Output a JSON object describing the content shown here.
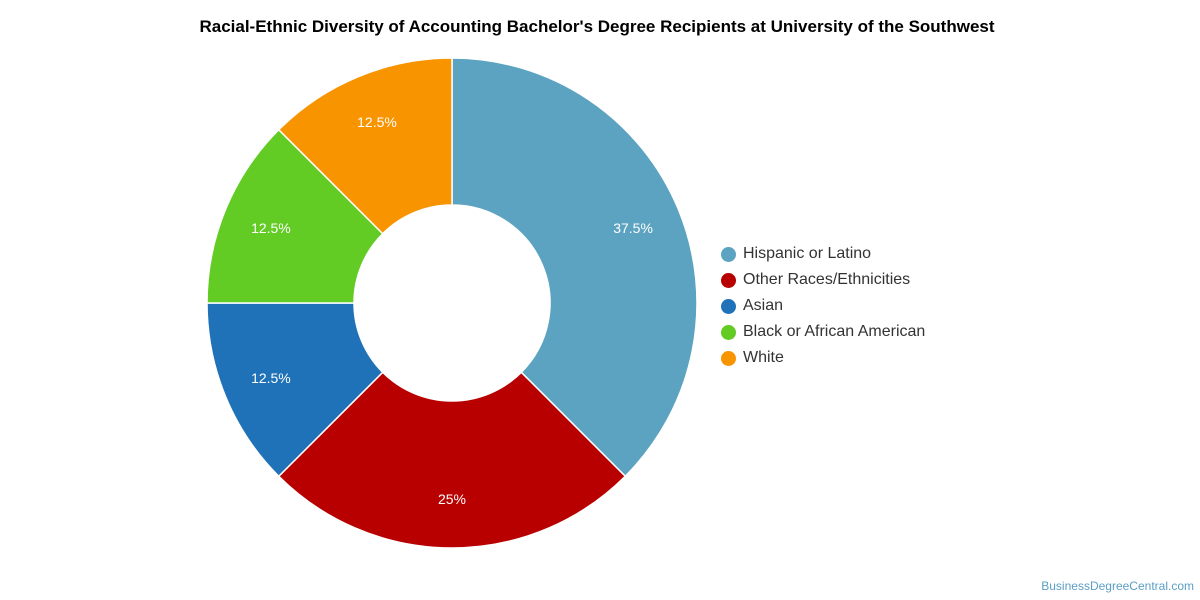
{
  "chart_data": {
    "type": "pie",
    "title": "Racial-Ethnic Diversity of Accounting Bachelor's Degree Recipients at University of the Southwest",
    "donut": true,
    "legend_position": "right",
    "series": [
      {
        "name": "Hispanic or Latino",
        "value": 37.5,
        "label": "37.5%",
        "color": "#5ba3c0"
      },
      {
        "name": "Other Races/Ethnicities",
        "value": 25,
        "label": "25%",
        "color": "#b80000"
      },
      {
        "name": "Asian",
        "value": 12.5,
        "label": "12.5%",
        "color": "#1f72b8"
      },
      {
        "name": "Black or African American",
        "value": 12.5,
        "label": "12.5%",
        "color": "#62cc24"
      },
      {
        "name": "White",
        "value": 12.5,
        "label": "12.5%",
        "color": "#f79400"
      }
    ]
  },
  "footer": {
    "credit": "BusinessDegreeCentral.com"
  }
}
